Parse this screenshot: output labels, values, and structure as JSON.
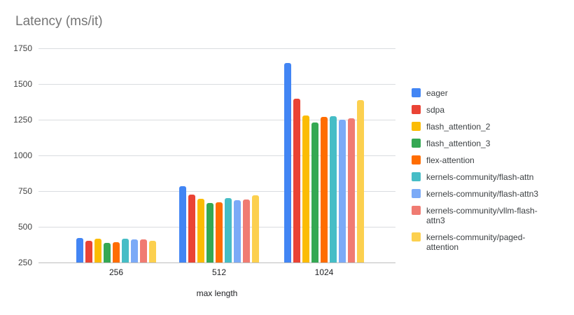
{
  "chart_data": {
    "type": "bar",
    "title": "Latency (ms/it)",
    "xlabel": "max length",
    "ylabel": "",
    "categories": [
      "256",
      "512",
      "1024"
    ],
    "series": [
      {
        "name": "eager",
        "color": "#4285F4",
        "values": [
          420,
          785,
          1645
        ]
      },
      {
        "name": "sdpa",
        "color": "#EA4335",
        "values": [
          400,
          725,
          1395
        ]
      },
      {
        "name": "flash_attention_2",
        "color": "#FBBC04",
        "values": [
          415,
          695,
          1280
        ]
      },
      {
        "name": "flash_attention_3",
        "color": "#34A853",
        "values": [
          385,
          665,
          1230
        ]
      },
      {
        "name": "flex-attention",
        "color": "#FF6D01",
        "values": [
          390,
          670,
          1270
        ]
      },
      {
        "name": "kernels-community/flash-attn",
        "color": "#46BDC6",
        "values": [
          415,
          700,
          1275
        ]
      },
      {
        "name": "kernels-community/flash-attn3",
        "color": "#7BAAF7",
        "values": [
          410,
          685,
          1250
        ]
      },
      {
        "name": "kernels-community/vllm-flash-attn3",
        "color": "#F07B72",
        "values": [
          410,
          690,
          1260
        ]
      },
      {
        "name": "kernels-community/paged-attention",
        "color": "#FCD04F",
        "values": [
          400,
          720,
          1385
        ]
      }
    ],
    "ylim": [
      250,
      1750
    ],
    "y_ticks": [
      250,
      500,
      750,
      1000,
      1250,
      1500,
      1750
    ],
    "grid": true,
    "legend_position": "right",
    "gridline_color": "#dadce0",
    "baseline_color": "#bdbdbd",
    "title_color": "#757575"
  }
}
